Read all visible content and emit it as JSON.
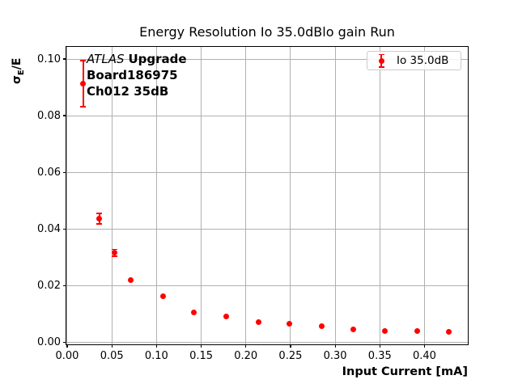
{
  "title": "Energy Resolution Io 35.0dBlo gain Run",
  "axes": {
    "xlabel": "Input Current [mA]",
    "ylabel": {
      "sigma": "σ",
      "subscript": "E",
      "suffix": "/E"
    },
    "x_ticks": [
      {
        "value": 0.0,
        "label": "0.00"
      },
      {
        "value": 0.05,
        "label": "0.05"
      },
      {
        "value": 0.1,
        "label": "0.10"
      },
      {
        "value": 0.15,
        "label": "0.15"
      },
      {
        "value": 0.2,
        "label": "0.20"
      },
      {
        "value": 0.25,
        "label": "0.25"
      },
      {
        "value": 0.3,
        "label": "0.30"
      },
      {
        "value": 0.35,
        "label": "0.35"
      },
      {
        "value": 0.4,
        "label": "0.40"
      }
    ],
    "y_ticks": [
      {
        "value": 0.0,
        "label": "0.00"
      },
      {
        "value": 0.02,
        "label": "0.02"
      },
      {
        "value": 0.04,
        "label": "0.04"
      },
      {
        "value": 0.06,
        "label": "0.06"
      },
      {
        "value": 0.08,
        "label": "0.08"
      },
      {
        "value": 0.1,
        "label": "0.10"
      }
    ]
  },
  "annotation": {
    "experiment": "ATLAS",
    "experiment_suffix": "Upgrade",
    "board": "Board186975",
    "channel": "Ch012 35dB"
  },
  "legend": {
    "items": [
      {
        "label": "Io 35.0dB",
        "marker": "errorbar-point"
      }
    ]
  },
  "colors": {
    "series": "#ff0000",
    "grid": "#b0b0b0",
    "spine": "#000000",
    "background": "#ffffff"
  },
  "chart_data": {
    "type": "scatter",
    "title": "Energy Resolution Io 35.0dBlo gain Run",
    "xlabel": "Input Current [mA]",
    "ylabel": "sigma_E/E",
    "xlim": [
      -0.0009,
      0.4485
    ],
    "ylim": [
      -0.0008,
      0.1043
    ],
    "grid": true,
    "legend_position": "upper right",
    "series": [
      {
        "name": "Io 35.0dB",
        "color": "#ff0000",
        "marker": "circle-with-errorbars",
        "points": [
          {
            "x": 0.018,
            "y": 0.0913,
            "yerr": 0.0082
          },
          {
            "x": 0.036,
            "y": 0.0436,
            "yerr": 0.0019
          },
          {
            "x": 0.053,
            "y": 0.0316,
            "yerr": 0.0012
          },
          {
            "x": 0.071,
            "y": 0.0219,
            "yerr": 0.0005
          },
          {
            "x": 0.107,
            "y": 0.0161,
            "yerr": 0.0004
          },
          {
            "x": 0.142,
            "y": 0.0104,
            "yerr": 0.0003
          },
          {
            "x": 0.178,
            "y": 0.009,
            "yerr": 0.0003
          },
          {
            "x": 0.214,
            "y": 0.007,
            "yerr": 0.0002
          },
          {
            "x": 0.249,
            "y": 0.0064,
            "yerr": 0.0002
          },
          {
            "x": 0.285,
            "y": 0.0056,
            "yerr": 0.0002
          },
          {
            "x": 0.32,
            "y": 0.0044,
            "yerr": 0.0002
          },
          {
            "x": 0.356,
            "y": 0.004,
            "yerr": 0.0002
          },
          {
            "x": 0.392,
            "y": 0.0039,
            "yerr": 0.0002
          },
          {
            "x": 0.427,
            "y": 0.0036,
            "yerr": 0.0002
          }
        ]
      }
    ]
  }
}
